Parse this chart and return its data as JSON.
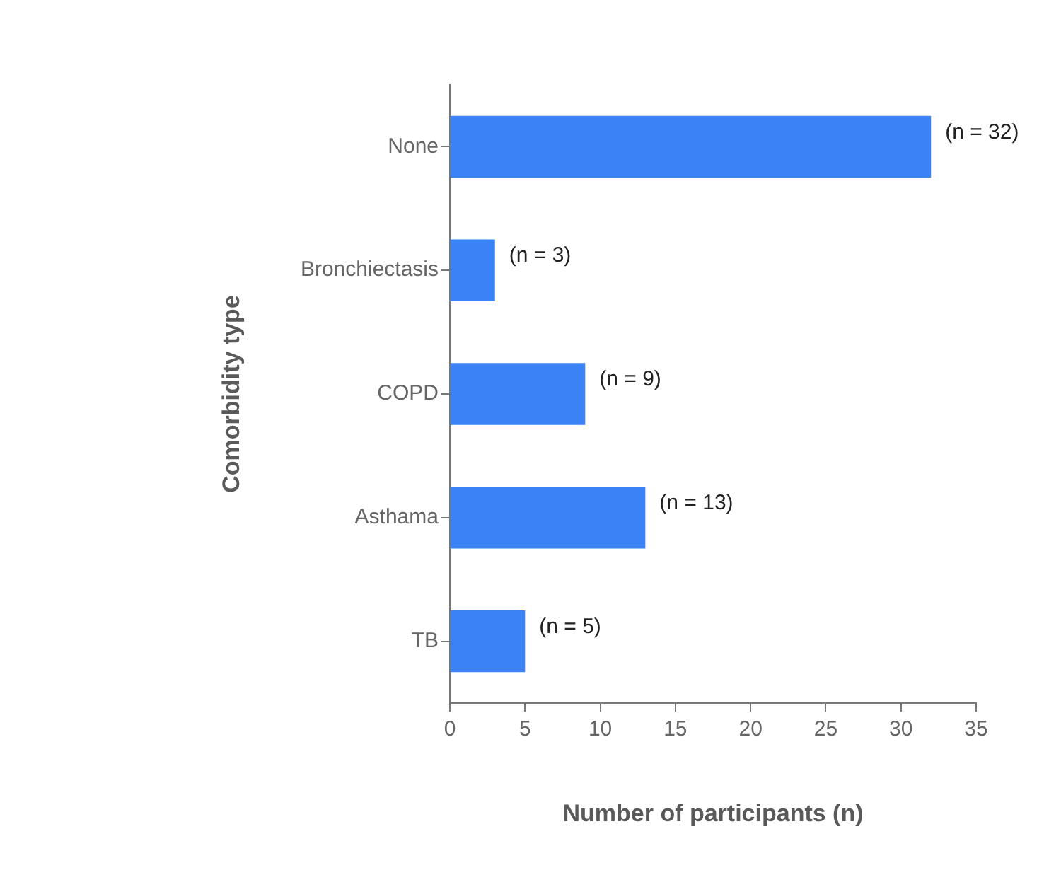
{
  "chart_data": {
    "type": "bar",
    "orientation": "horizontal",
    "xlabel": "Number of participants (n)",
    "ylabel": "Comorbidity type",
    "categories": [
      "None",
      "Bronchiectasis",
      "COPD",
      "Asthama",
      "TB"
    ],
    "values": [
      32,
      3,
      9,
      13,
      5
    ],
    "color": "#3b82f6",
    "value_labels": [
      "(n = 32)",
      "(n = 3)",
      "(n = 9)",
      "(n = 13)",
      "(n = 5)"
    ],
    "xlim": [
      0,
      35
    ],
    "xticks": [
      0,
      5,
      10,
      15,
      20,
      25,
      30,
      35
    ],
    "grid": false,
    "legend": false
  }
}
